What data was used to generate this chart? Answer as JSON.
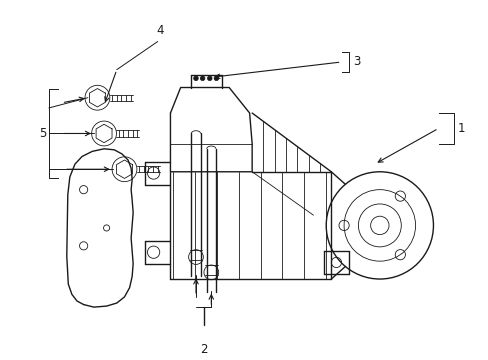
{
  "background_color": "#ffffff",
  "line_color": "#1a1a1a",
  "line_width": 1.0,
  "label_fontsize": 8.5,
  "figsize": [
    4.89,
    3.6
  ],
  "dpi": 100
}
